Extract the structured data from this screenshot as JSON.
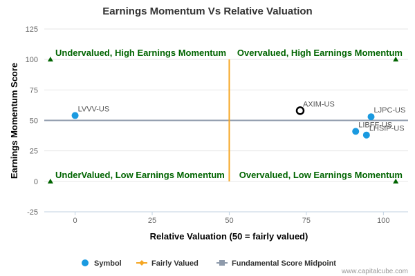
{
  "chart_data": {
    "type": "scatter",
    "title": "Earnings Momentum Vs Relative Valuation",
    "xlabel": "Relative Valuation (50 = fairly valued)",
    "ylabel": "Earnings Momentum Score",
    "xlim": [
      -10,
      108
    ],
    "ylim": [
      -25,
      125
    ],
    "x_ticks": [
      0,
      25,
      50,
      75,
      100
    ],
    "y_ticks": [
      -25,
      0,
      25,
      50,
      75,
      100,
      125
    ],
    "grid": "horizontal",
    "legend_position": "bottom",
    "points": [
      {
        "label": "LVVV-US",
        "x": 0,
        "y": 54,
        "highlight": false
      },
      {
        "label": "AXIM-US",
        "x": 73,
        "y": 58,
        "highlight": true
      },
      {
        "label": "LJPC-US",
        "x": 96,
        "y": 53,
        "highlight": false
      },
      {
        "label": "LIBFF-US",
        "x": 91,
        "y": 41,
        "highlight": false
      },
      {
        "label": "LHSIP-US",
        "x": 94.5,
        "y": 38,
        "highlight": false
      }
    ],
    "fairly_valued_x": 50,
    "fairly_valued_range": [
      0,
      100
    ],
    "midpoint_y": 50,
    "quadrant_labels": {
      "top_left": "Undervalued, High Earnings Momentum",
      "top_right": "Overvalued, High Earnings Momentum",
      "bottom_left": "UnderValued, Low Earnings Momentum",
      "bottom_right": "Overvalued, Low Earnings Momentum"
    },
    "legend": [
      "Symbol",
      "Fairly Valued",
      "Fundamental Score Midpoint"
    ],
    "colors": {
      "symbol": "#1a9ae0",
      "fairly_valued": "#f5a623",
      "midpoint": "#8e9aab",
      "quadrant_text": "#006400",
      "highlight_stroke": "#000000"
    }
  },
  "credit": "www.capitalcube.com"
}
